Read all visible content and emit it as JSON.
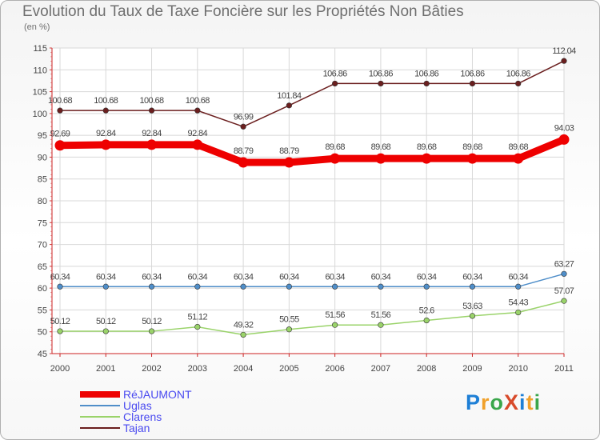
{
  "title": "Evolution du Taux de Taxe Foncière sur les Propriétés Non Bâties",
  "unit_label": "(en %)",
  "logo": {
    "text": "ProXiti",
    "colors": [
      "#1e7fd6",
      "#f0a02a",
      "#3aa64b",
      "#d84a2a",
      "#1e7fd6",
      "#f0a02a",
      "#3aa64b"
    ]
  },
  "chart_data": {
    "type": "line",
    "title": "Evolution du Taux de Taxe Foncière sur les Propriétés Non Bâties",
    "ylabel": "(en %)",
    "ylim": [
      45,
      115
    ],
    "yticks": [
      45,
      50,
      55,
      60,
      65,
      70,
      75,
      80,
      85,
      90,
      95,
      100,
      105,
      110,
      115
    ],
    "grid": true,
    "legend_position": "bottom-left",
    "categories": [
      "2000",
      "2001",
      "2002",
      "2003",
      "2004",
      "2005",
      "2006",
      "2007",
      "2008",
      "2009",
      "2010",
      "2011"
    ],
    "series": [
      {
        "name": "Tajan",
        "color": "#6b1f1f",
        "values": [
          100.68,
          100.68,
          100.68,
          100.68,
          96.99,
          101.84,
          106.86,
          106.86,
          106.86,
          106.86,
          106.86,
          112.04
        ],
        "labels": [
          "100.68",
          "100.68",
          "100.68",
          "100.68",
          "96.99",
          "101.84",
          "106.86",
          "106.86",
          "106.86",
          "106.86",
          "106.86",
          "112.04"
        ]
      },
      {
        "name": "RéJAUMONT",
        "color": "#ee0000",
        "values": [
          92.69,
          92.84,
          92.84,
          92.84,
          88.79,
          88.79,
          89.68,
          89.68,
          89.68,
          89.68,
          89.68,
          94.03
        ],
        "labels": [
          "92.69",
          "92.84",
          "92.84",
          "92.84",
          "88.79",
          "88.79",
          "89.68",
          "89.68",
          "89.68",
          "89.68",
          "89.68",
          "94.03"
        ]
      },
      {
        "name": "Uglas",
        "color": "#4f8ec9",
        "values": [
          60.34,
          60.34,
          60.34,
          60.34,
          60.34,
          60.34,
          60.34,
          60.34,
          60.34,
          60.34,
          60.34,
          63.27
        ],
        "labels": [
          "60.34",
          "60.34",
          "60.34",
          "60.34",
          "60.34",
          "60.34",
          "60.34",
          "60.34",
          "60.34",
          "60.34",
          "60.34",
          "63.27"
        ]
      },
      {
        "name": "Clarens",
        "color": "#9ad36a",
        "values": [
          50.12,
          50.12,
          50.12,
          51.12,
          49.32,
          50.55,
          51.56,
          51.56,
          52.6,
          53.63,
          54.43,
          57.07
        ],
        "labels": [
          "50.12",
          "50.12",
          "50.12",
          "51.12",
          "49.32",
          "50.55",
          "51.56",
          "51.56",
          "52.6",
          "53.63",
          "54.43",
          "57.07"
        ]
      }
    ],
    "legend": [
      {
        "name": "RéJAUMONT",
        "color": "#ee0000"
      },
      {
        "name": "Uglas",
        "color": "#4f8ec9"
      },
      {
        "name": "Clarens",
        "color": "#9ad36a"
      },
      {
        "name": "Tajan",
        "color": "#6b1f1f"
      }
    ]
  }
}
